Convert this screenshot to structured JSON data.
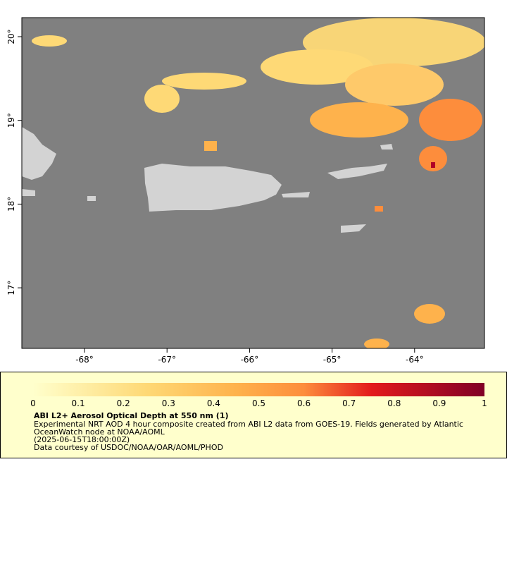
{
  "map": {
    "x_ticks": [
      "-68°",
      "-67°",
      "-66°",
      "-65°",
      "-64°"
    ],
    "y_ticks": [
      "20°",
      "19°",
      "18°",
      "17°"
    ]
  },
  "legend": {
    "colorbar_ticks": [
      0,
      0.1,
      0.2,
      0.3,
      0.4,
      0.5,
      0.6,
      0.7,
      0.8,
      0.9,
      1
    ],
    "title": "ABI L2+ Aerosol Optical Depth at 550 nm (1)",
    "lines": [
      "Experimental NRT AOD 4 hour composite created from ABI L2 data from GOES-19. Fields generated by Atlantic",
      "OceanWatch node at NOAA/AOML",
      "(2025-06-15T18:00:00Z)",
      "Data courtesy of USDOC/NOAA/OAR/AOML/PHOD"
    ]
  }
}
